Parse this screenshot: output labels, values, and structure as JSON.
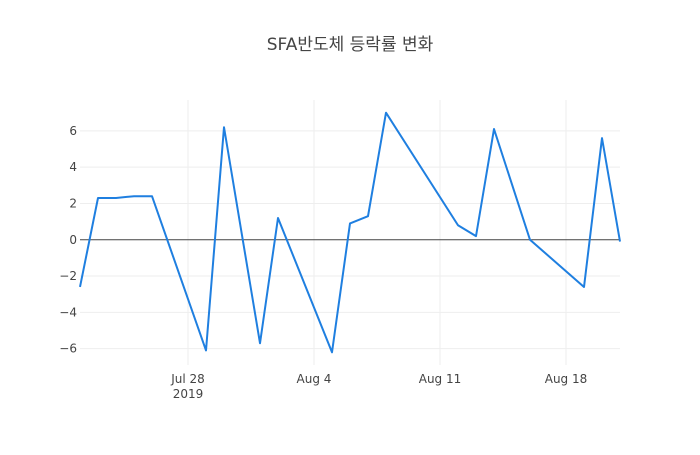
{
  "chart_data": {
    "type": "line",
    "title": "SFA반도체 등락률 변화",
    "xlabel": "",
    "ylabel": "",
    "ylim": [
      -6.9,
      7.7
    ],
    "xlim": [
      "2019-07-22",
      "2019-08-21"
    ],
    "grid": true,
    "zeroline": true,
    "x_ticks": [
      {
        "date": "2019-07-28",
        "label": "Jul 28",
        "sublabel": "2019"
      },
      {
        "date": "2019-08-04",
        "label": "Aug 4",
        "sublabel": ""
      },
      {
        "date": "2019-08-11",
        "label": "Aug 11",
        "sublabel": ""
      },
      {
        "date": "2019-08-18",
        "label": "Aug 18",
        "sublabel": ""
      }
    ],
    "y_ticks": [
      {
        "value": 6,
        "label": "6"
      },
      {
        "value": 4,
        "label": "4"
      },
      {
        "value": 2,
        "label": "2"
      },
      {
        "value": 0,
        "label": "0"
      },
      {
        "value": -2,
        "label": "−2"
      },
      {
        "value": -4,
        "label": "−4"
      },
      {
        "value": -6,
        "label": "−6"
      }
    ],
    "series": [
      {
        "color": "#1f7fe0",
        "points": [
          {
            "x": "2019-07-22",
            "y": -2.6
          },
          {
            "x": "2019-07-23",
            "y": 2.3
          },
          {
            "x": "2019-07-24",
            "y": 2.3
          },
          {
            "x": "2019-07-25",
            "y": 2.4
          },
          {
            "x": "2019-07-26",
            "y": 2.4
          },
          {
            "x": "2019-07-29",
            "y": -6.1
          },
          {
            "x": "2019-07-30",
            "y": 6.2
          },
          {
            "x": "2019-08-01",
            "y": -5.7
          },
          {
            "x": "2019-08-02",
            "y": 1.2
          },
          {
            "x": "2019-08-05",
            "y": -6.2
          },
          {
            "x": "2019-08-06",
            "y": 0.9
          },
          {
            "x": "2019-08-07",
            "y": 1.3
          },
          {
            "x": "2019-08-08",
            "y": 7.0
          },
          {
            "x": "2019-08-12",
            "y": 0.8
          },
          {
            "x": "2019-08-13",
            "y": 0.2
          },
          {
            "x": "2019-08-14",
            "y": 6.1
          },
          {
            "x": "2019-08-16",
            "y": 0.0
          },
          {
            "x": "2019-08-19",
            "y": -2.6
          },
          {
            "x": "2019-08-20",
            "y": 5.6
          },
          {
            "x": "2019-08-21",
            "y": -0.1
          }
        ]
      }
    ]
  }
}
